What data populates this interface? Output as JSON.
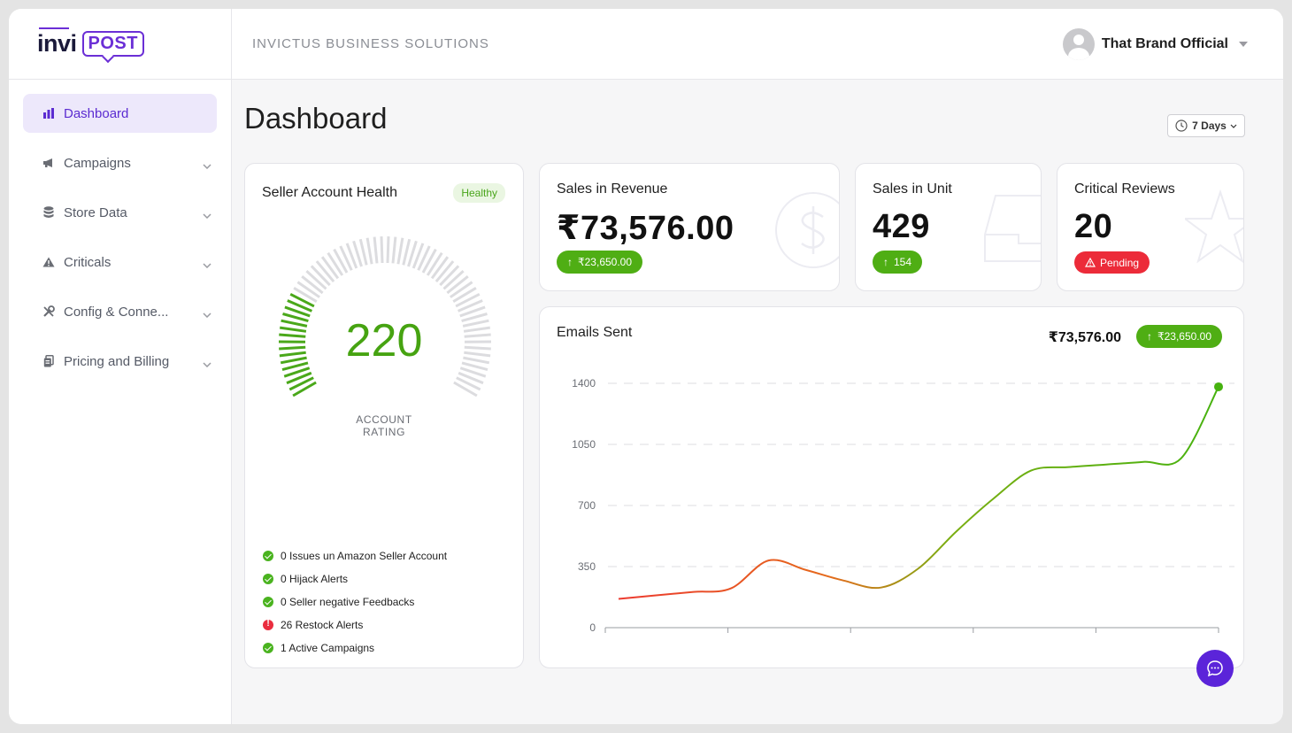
{
  "brand": {
    "logo_left": "invi",
    "logo_right": "POST"
  },
  "header": {
    "company": "INVICTUS BUSINESS SOLUTIONS",
    "user_name": "That Brand Official"
  },
  "sidebar": {
    "items": [
      {
        "label": "Dashboard",
        "icon": "bar-chart-icon",
        "active": true
      },
      {
        "label": "Campaigns",
        "icon": "megaphone-icon"
      },
      {
        "label": "Store Data",
        "icon": "database-icon"
      },
      {
        "label": "Criticals",
        "icon": "warning-icon"
      },
      {
        "label": "Config & Conne...",
        "icon": "tools-icon"
      },
      {
        "label": "Pricing and Billing",
        "icon": "billing-icon"
      }
    ]
  },
  "page": {
    "title": "Dashboard",
    "range": "7 Days"
  },
  "health": {
    "title": "Seller Account Health",
    "status": "Healthy",
    "rating": "220",
    "rating_fraction": 0.25,
    "rating_label_1": "ACCOUNT",
    "rating_label_2": "RATING",
    "alerts": [
      {
        "text": "0 Issues un Amazon Seller Account",
        "status": "ok"
      },
      {
        "text": "0 Hijack Alerts",
        "status": "ok"
      },
      {
        "text": "0 Seller negative Feedbacks",
        "status": "ok"
      },
      {
        "text": "26 Restock Alerts",
        "status": "bad"
      },
      {
        "text": "1 Active Campaigns",
        "status": "ok"
      }
    ]
  },
  "revenue": {
    "title": "Sales in Revenue",
    "value": "₹73,576.00",
    "change": "₹23,650.00"
  },
  "units": {
    "title": "Sales in Unit",
    "value": "429",
    "change": "154"
  },
  "reviews": {
    "title": "Critical Reviews",
    "value": "20",
    "status": "Pending"
  },
  "emails": {
    "title": "Emails Sent",
    "amount": "₹73,576.00",
    "change": "₹23,650.00"
  },
  "colors": {
    "accent": "#5b2bd1",
    "green": "#4fae14",
    "red": "#ec2b39"
  },
  "chart_data": {
    "type": "line",
    "title": "Emails Sent",
    "xlabel": "",
    "ylabel": "",
    "ylim": [
      0,
      1400
    ],
    "yticks": [
      "0",
      "350",
      "700",
      "1050",
      "1400"
    ],
    "grid": true,
    "x": [
      0,
      1,
      2,
      3,
      4,
      5,
      6,
      7,
      8,
      9,
      10,
      11,
      12,
      13,
      14,
      15,
      16
    ],
    "series": [
      {
        "values": [
          165,
          185,
          205,
          225,
          385,
          330,
          270,
          230,
          340,
          550,
          740,
          900,
          920,
          935,
          950,
          970,
          1380
        ]
      }
    ]
  }
}
